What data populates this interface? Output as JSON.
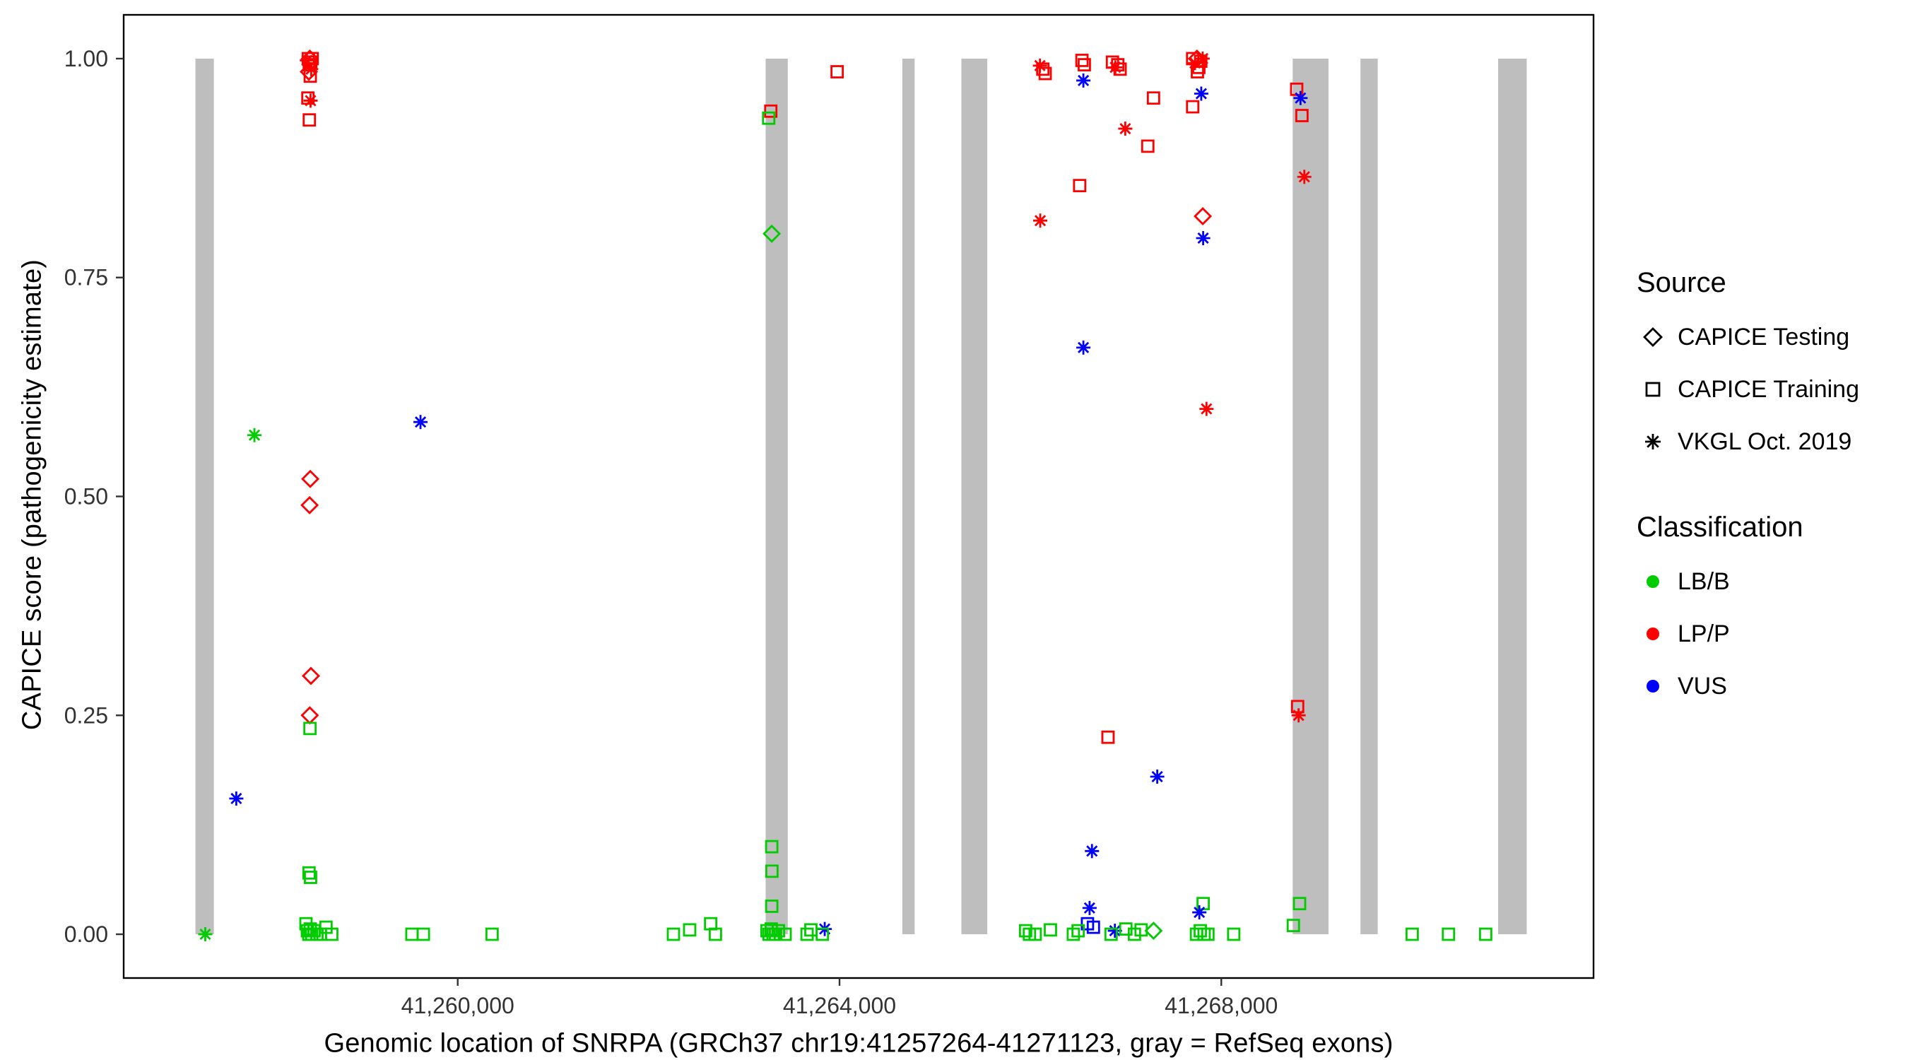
{
  "chart_data": {
    "type": "scatter",
    "title": "",
    "xlabel": "Genomic location of SNRPA (GRCh37 chr19:41257264-41271123, gray = RefSeq exons)",
    "ylabel": "CAPICE score (pathogenicity estimate)",
    "xlim": [
      41256500,
      41271900
    ],
    "ylim": [
      -0.05,
      1.05
    ],
    "x_ticks": [
      {
        "value": 41260000,
        "label": "41,260,000"
      },
      {
        "value": 41264000,
        "label": "41,264,000"
      },
      {
        "value": 41268000,
        "label": "41,268,000"
      }
    ],
    "y_ticks": [
      {
        "value": 0.0,
        "label": "0.00"
      },
      {
        "value": 0.25,
        "label": "0.25"
      },
      {
        "value": 0.5,
        "label": "0.50"
      },
      {
        "value": 0.75,
        "label": "0.75"
      },
      {
        "value": 1.0,
        "label": "1.00"
      }
    ],
    "exon_color": "#BEBEBE",
    "exons": [
      [
        41257252,
        41257445
      ],
      [
        41263226,
        41263458
      ],
      [
        41264658,
        41264787
      ],
      [
        41265277,
        41265548
      ],
      [
        41268748,
        41269123
      ],
      [
        41269458,
        41269639
      ],
      [
        41270900,
        41271200
      ]
    ],
    "colors": {
      "LB/B": "#00CC00",
      "LP/P": "#FF0000",
      "VUS": "#0000FF"
    },
    "legend": {
      "source_title": "Source",
      "source_items": [
        {
          "label": "CAPICE Testing",
          "marker": "diamond"
        },
        {
          "label": "CAPICE Training",
          "marker": "square"
        },
        {
          "label": "VKGL Oct. 2019",
          "marker": "asterisk"
        }
      ],
      "class_title": "Classification",
      "class_items": [
        {
          "label": "LB/B",
          "color": "#00CC00"
        },
        {
          "label": "LP/P",
          "color": "#FF0000"
        },
        {
          "label": "VUS",
          "color": "#0000FF"
        }
      ]
    },
    "point_format": [
      "genomic_position",
      "capice_score",
      "source_marker",
      "classification"
    ],
    "points": [
      [
        41258420,
        0.998,
        "asterisk",
        "LP/P"
      ],
      [
        41258435,
        1.0,
        "square",
        "LP/P"
      ],
      [
        41258445,
        0.993,
        "square",
        "LP/P"
      ],
      [
        41258450,
        1.0,
        "diamond",
        "LP/P"
      ],
      [
        41258460,
        0.996,
        "square",
        "LP/P"
      ],
      [
        41258465,
        0.988,
        "asterisk",
        "LP/P"
      ],
      [
        41258475,
        1.0,
        "square",
        "LP/P"
      ],
      [
        41258440,
        0.985,
        "diamond",
        "LP/P"
      ],
      [
        41258455,
        0.98,
        "square",
        "LP/P"
      ],
      [
        41258430,
        0.955,
        "square",
        "LP/P"
      ],
      [
        41258458,
        0.952,
        "asterisk",
        "LP/P"
      ],
      [
        41258445,
        0.93,
        "square",
        "LP/P"
      ],
      [
        41258455,
        0.52,
        "diamond",
        "LP/P"
      ],
      [
        41258448,
        0.49,
        "diamond",
        "LP/P"
      ],
      [
        41258462,
        0.295,
        "diamond",
        "LP/P"
      ],
      [
        41258450,
        0.25,
        "diamond",
        "LP/P"
      ],
      [
        41258452,
        0.235,
        "square",
        "LB/B"
      ],
      [
        41258442,
        0.07,
        "square",
        "LB/B"
      ],
      [
        41258458,
        0.065,
        "square",
        "LB/B"
      ],
      [
        41258410,
        0.012,
        "square",
        "LB/B"
      ],
      [
        41258425,
        0.004,
        "square",
        "LB/B"
      ],
      [
        41258440,
        0.0,
        "square",
        "LB/B"
      ],
      [
        41258455,
        0.006,
        "square",
        "LB/B"
      ],
      [
        41258470,
        0.0,
        "square",
        "LB/B"
      ],
      [
        41258495,
        0.004,
        "square",
        "LB/B"
      ],
      [
        41258525,
        0.0,
        "square",
        "LB/B"
      ],
      [
        41258560,
        0.0,
        "square",
        "LB/B"
      ],
      [
        41258620,
        0.008,
        "square",
        "LB/B"
      ],
      [
        41258680,
        0.0,
        "square",
        "LB/B"
      ],
      [
        41257355,
        0.0,
        "asterisk",
        "LB/B"
      ],
      [
        41257680,
        0.155,
        "asterisk",
        "VUS"
      ],
      [
        41257870,
        0.57,
        "asterisk",
        "LB/B"
      ],
      [
        41259610,
        0.585,
        "asterisk",
        "VUS"
      ],
      [
        41259520,
        0.0,
        "square",
        "LB/B"
      ],
      [
        41259640,
        0.0,
        "square",
        "LB/B"
      ],
      [
        41260360,
        0.0,
        "square",
        "LB/B"
      ],
      [
        41262260,
        0.0,
        "square",
        "LB/B"
      ],
      [
        41262430,
        0.005,
        "square",
        "LB/B"
      ],
      [
        41262650,
        0.012,
        "square",
        "LB/B"
      ],
      [
        41262700,
        0.0,
        "square",
        "LB/B"
      ],
      [
        41263280,
        0.94,
        "square",
        "LP/P"
      ],
      [
        41263258,
        0.932,
        "square",
        "LB/B"
      ],
      [
        41263290,
        0.8,
        "diamond",
        "LB/B"
      ],
      [
        41263290,
        0.1,
        "square",
        "LB/B"
      ],
      [
        41263292,
        0.072,
        "square",
        "LB/B"
      ],
      [
        41263290,
        0.032,
        "square",
        "LB/B"
      ],
      [
        41263240,
        0.004,
        "square",
        "LB/B"
      ],
      [
        41263262,
        0.0,
        "square",
        "LB/B"
      ],
      [
        41263285,
        0.006,
        "square",
        "LB/B"
      ],
      [
        41263305,
        0.0,
        "square",
        "LB/B"
      ],
      [
        41263330,
        0.0,
        "square",
        "LB/B"
      ],
      [
        41263360,
        0.004,
        "square",
        "LB/B"
      ],
      [
        41263430,
        0.0,
        "square",
        "LB/B"
      ],
      [
        41263660,
        0.0,
        "square",
        "LB/B"
      ],
      [
        41263700,
        0.005,
        "square",
        "LB/B"
      ],
      [
        41263845,
        0.006,
        "asterisk",
        "VUS"
      ],
      [
        41263820,
        0.0,
        "square",
        "LB/B"
      ],
      [
        41263975,
        0.985,
        "square",
        "LP/P"
      ],
      [
        41266100,
        0.992,
        "asterisk",
        "LP/P"
      ],
      [
        41266130,
        0.988,
        "square",
        "LP/P"
      ],
      [
        41266155,
        0.983,
        "square",
        "LP/P"
      ],
      [
        41266103,
        0.815,
        "asterisk",
        "LP/P"
      ],
      [
        41266540,
        0.998,
        "square",
        "LP/P"
      ],
      [
        41266565,
        0.993,
        "square",
        "LP/P"
      ],
      [
        41266555,
        0.975,
        "asterisk",
        "VUS"
      ],
      [
        41266516,
        0.855,
        "square",
        "LP/P"
      ],
      [
        41266555,
        0.67,
        "asterisk",
        "VUS"
      ],
      [
        41266860,
        0.996,
        "square",
        "LP/P"
      ],
      [
        41266890,
        0.99,
        "asterisk",
        "LP/P"
      ],
      [
        41266915,
        0.993,
        "square",
        "LP/P"
      ],
      [
        41266940,
        0.988,
        "square",
        "LP/P"
      ],
      [
        41266994,
        0.92,
        "asterisk",
        "LP/P"
      ],
      [
        41267290,
        0.955,
        "square",
        "LP/P"
      ],
      [
        41267230,
        0.9,
        "square",
        "LP/P"
      ],
      [
        41266813,
        0.225,
        "square",
        "LP/P"
      ],
      [
        41267329,
        0.18,
        "asterisk",
        "VUS"
      ],
      [
        41266645,
        0.095,
        "asterisk",
        "VUS"
      ],
      [
        41266620,
        0.03,
        "asterisk",
        "VUS"
      ],
      [
        41266598,
        0.012,
        "square",
        "VUS"
      ],
      [
        41266660,
        0.008,
        "square",
        "VUS"
      ],
      [
        41266885,
        0.004,
        "asterisk",
        "VUS"
      ],
      [
        41267290,
        0.004,
        "diamond",
        "LB/B"
      ],
      [
        41265950,
        0.004,
        "square",
        "LB/B"
      ],
      [
        41265990,
        0.0,
        "square",
        "LB/B"
      ],
      [
        41266050,
        0.0,
        "square",
        "LB/B"
      ],
      [
        41266210,
        0.005,
        "square",
        "LB/B"
      ],
      [
        41266450,
        0.0,
        "square",
        "LB/B"
      ],
      [
        41266500,
        0.004,
        "square",
        "LB/B"
      ],
      [
        41266845,
        0.0,
        "square",
        "LB/B"
      ],
      [
        41267000,
        0.006,
        "square",
        "LB/B"
      ],
      [
        41267090,
        0.0,
        "square",
        "LB/B"
      ],
      [
        41267160,
        0.005,
        "square",
        "LB/B"
      ],
      [
        41267700,
        1.0,
        "square",
        "LP/P"
      ],
      [
        41267725,
        0.995,
        "asterisk",
        "LP/P"
      ],
      [
        41267745,
        1.0,
        "diamond",
        "LP/P"
      ],
      [
        41267765,
        0.99,
        "square",
        "LP/P"
      ],
      [
        41267785,
        0.997,
        "square",
        "LP/P"
      ],
      [
        41267805,
        1.0,
        "asterisk",
        "LP/P"
      ],
      [
        41267750,
        0.985,
        "square",
        "LP/P"
      ],
      [
        41267790,
        0.96,
        "asterisk",
        "VUS"
      ],
      [
        41267700,
        0.945,
        "square",
        "LP/P"
      ],
      [
        41267806,
        0.82,
        "diamond",
        "LP/P"
      ],
      [
        41267810,
        0.795,
        "asterisk",
        "VUS"
      ],
      [
        41267845,
        0.6,
        "asterisk",
        "LP/P"
      ],
      [
        41267810,
        0.035,
        "square",
        "LB/B"
      ],
      [
        41267770,
        0.025,
        "asterisk",
        "VUS"
      ],
      [
        41267740,
        0.0,
        "square",
        "LB/B"
      ],
      [
        41267780,
        0.004,
        "square",
        "LB/B"
      ],
      [
        41267820,
        0.0,
        "square",
        "LB/B"
      ],
      [
        41267860,
        0.0,
        "square",
        "LB/B"
      ],
      [
        41268130,
        0.0,
        "square",
        "LB/B"
      ],
      [
        41268790,
        0.965,
        "square",
        "LP/P"
      ],
      [
        41268830,
        0.955,
        "asterisk",
        "VUS"
      ],
      [
        41268845,
        0.935,
        "square",
        "LP/P"
      ],
      [
        41268870,
        0.865,
        "asterisk",
        "LP/P"
      ],
      [
        41268800,
        0.26,
        "square",
        "LP/P"
      ],
      [
        41268810,
        0.25,
        "asterisk",
        "LP/P"
      ],
      [
        41268820,
        0.035,
        "square",
        "LB/B"
      ],
      [
        41268755,
        0.01,
        "square",
        "LB/B"
      ],
      [
        41270000,
        0.0,
        "square",
        "LB/B"
      ],
      [
        41270380,
        0.0,
        "square",
        "LB/B"
      ],
      [
        41270770,
        0.0,
        "square",
        "LB/B"
      ]
    ]
  }
}
